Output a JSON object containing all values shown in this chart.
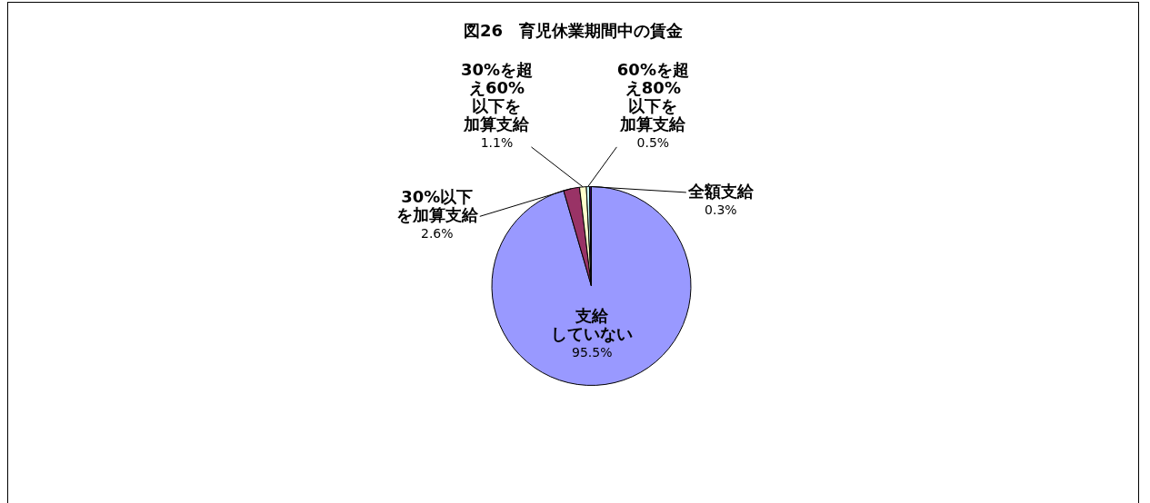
{
  "chart_data": {
    "type": "pie",
    "title": "図26　育児休業期間中の賃金",
    "categories": [
      "支給していない",
      "30%以下を加算支給",
      "30%を超え60%以下を加算支給",
      "60%を超え80%以下を加算支給",
      "全額支給"
    ],
    "values": [
      95.5,
      2.6,
      1.1,
      0.5,
      0.3
    ],
    "value_labels": [
      "95.5%",
      "2.6%",
      "1.1%",
      "0.5%",
      "0.3%"
    ],
    "colors": [
      "#9999ff",
      "#993366",
      "#ffffcc",
      "#ccffff",
      "#330066"
    ],
    "legend": false
  }
}
